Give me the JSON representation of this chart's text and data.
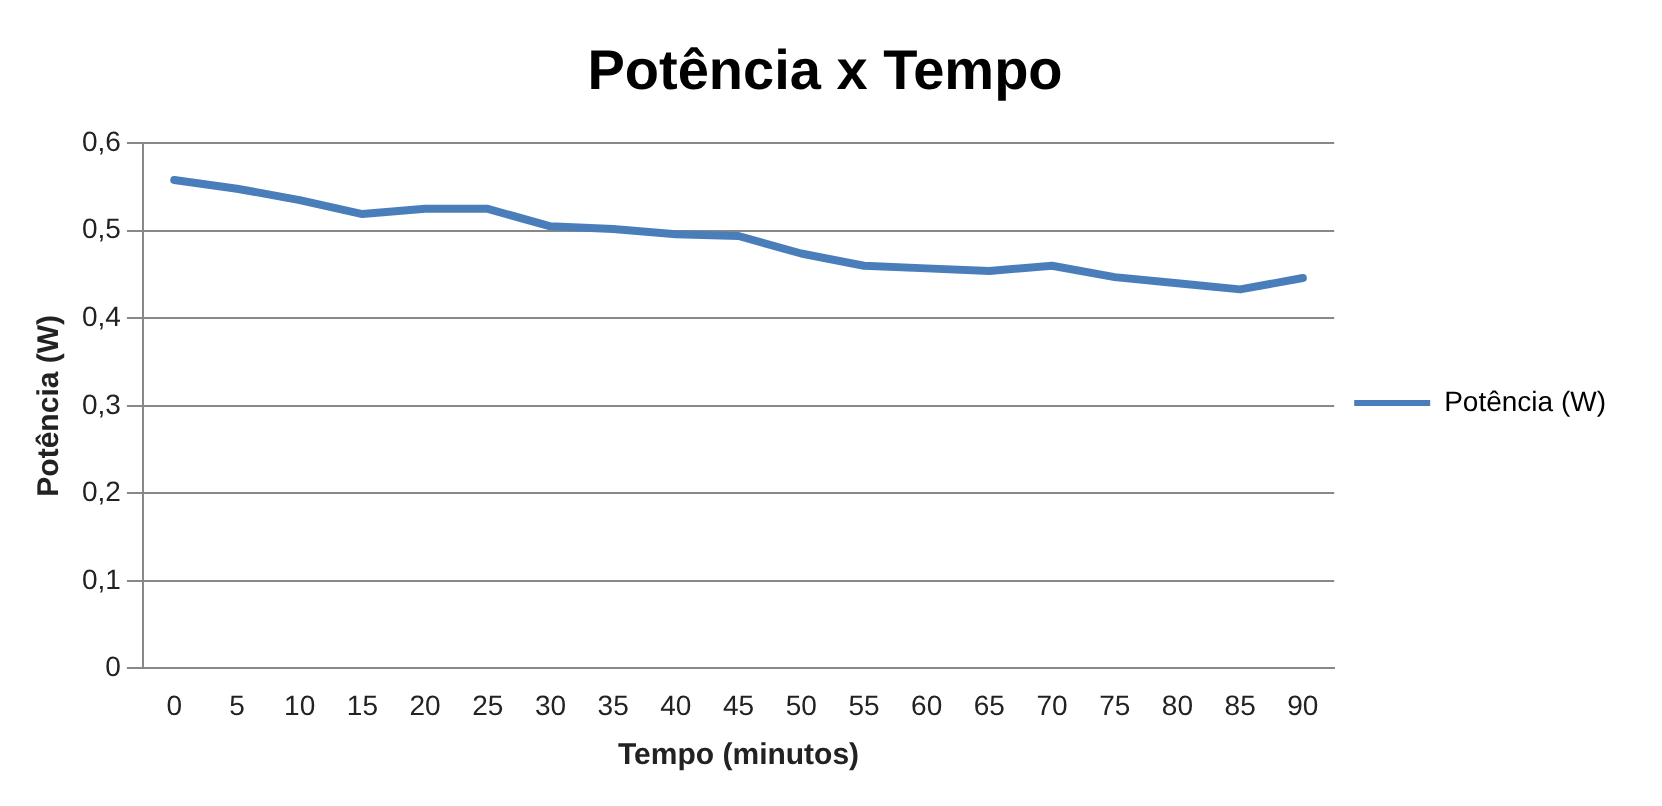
{
  "chart_data": {
    "type": "line",
    "title": "Potência x Tempo",
    "xlabel": "Tempo (minutos)",
    "ylabel": "Potência (W)",
    "categories": [
      "0",
      "5",
      "10",
      "15",
      "20",
      "25",
      "30",
      "35",
      "40",
      "45",
      "50",
      "55",
      "60",
      "65",
      "70",
      "75",
      "80",
      "85",
      "90"
    ],
    "series": [
      {
        "name": "Potência (W)",
        "color": "#4a7ebb",
        "values": [
          0.558,
          0.548,
          0.535,
          0.519,
          0.525,
          0.525,
          0.505,
          0.502,
          0.496,
          0.494,
          0.474,
          0.46,
          0.457,
          0.454,
          0.46,
          0.447,
          0.44,
          0.433,
          0.446
        ]
      }
    ],
    "ylim": [
      0,
      0.6
    ],
    "yticks": [
      {
        "value": 0,
        "label": "0"
      },
      {
        "value": 0.1,
        "label": "0,1"
      },
      {
        "value": 0.2,
        "label": "0,2"
      },
      {
        "value": 0.3,
        "label": "0,3"
      },
      {
        "value": 0.4,
        "label": "0,4"
      },
      {
        "value": 0.5,
        "label": "0,5"
      },
      {
        "value": 0.6,
        "label": "0,6"
      }
    ],
    "grid": "y",
    "legend": "right",
    "marker": "none",
    "line_style": "solid"
  }
}
